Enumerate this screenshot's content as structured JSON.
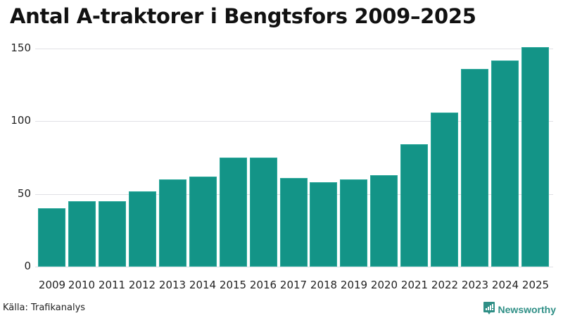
{
  "title": "Antal A-traktorer i Bengtsfors 2009–2025",
  "source": "Källa: Trafikanalys",
  "brand": {
    "name": "Newsworthy",
    "icon": "newsworthy-logo-icon",
    "color": "#2f8f86"
  },
  "colors": {
    "bar": "#139487",
    "grid": "#e1e1e6"
  },
  "y_ticks": [
    "0",
    "50",
    "100",
    "150"
  ],
  "chart_data": {
    "type": "bar",
    "title": "Antal A-traktorer i Bengtsfors 2009–2025",
    "xlabel": "",
    "ylabel": "",
    "categories": [
      "2009",
      "2010",
      "2011",
      "2012",
      "2013",
      "2014",
      "2015",
      "2016",
      "2017",
      "2018",
      "2019",
      "2020",
      "2021",
      "2022",
      "2023",
      "2024",
      "2025"
    ],
    "values": [
      40,
      45,
      45,
      52,
      60,
      62,
      75,
      75,
      61,
      58,
      60,
      63,
      84,
      106,
      136,
      142,
      151
    ],
    "ylim": [
      0,
      150
    ],
    "yticks": [
      0,
      50,
      100,
      150
    ],
    "grid": true,
    "legend": null,
    "color": "#139487"
  }
}
